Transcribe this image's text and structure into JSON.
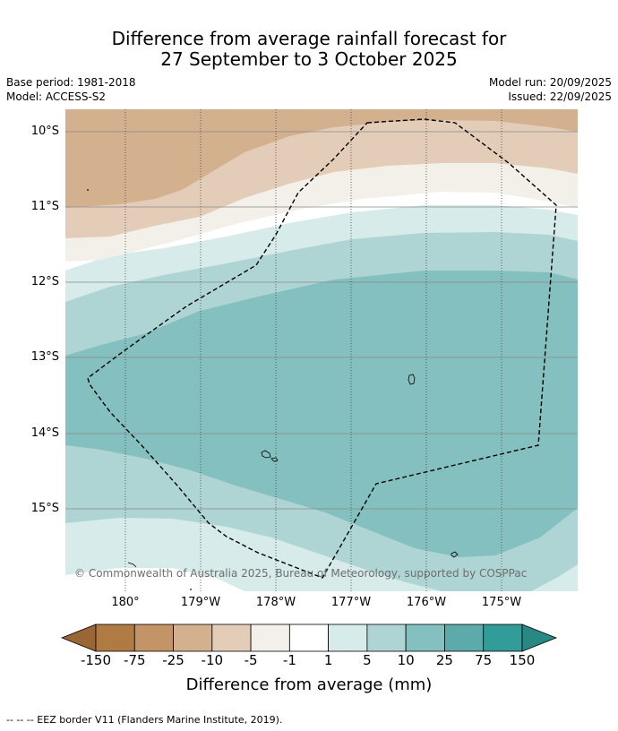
{
  "title": {
    "line1": "Difference from average rainfall forecast for",
    "line2": "27 September to 3 October 2025"
  },
  "meta": {
    "base_period": "Base period: 1981-2018",
    "model": "Model: ACCESS-S2",
    "model_run": "Model run: 20/09/2025",
    "issued": "Issued: 22/09/2025"
  },
  "map": {
    "latitude_labels": [
      "10°S",
      "11°S",
      "12°S",
      "13°S",
      "14°S",
      "15°S"
    ],
    "longitude_labels": [
      "180°",
      "179°W",
      "178°W",
      "177°W",
      "176°W",
      "175°W"
    ],
    "copyright": "© Commonwealth of Australia 2025, Bureau of Meteorology, supported by COSPPac"
  },
  "colorbar": {
    "title": "Difference from average (mm)",
    "labels": [
      "-150",
      "-75",
      "-25",
      "-10",
      "-5",
      "-1",
      "1",
      "5",
      "10",
      "25",
      "75",
      "150"
    ],
    "colors": [
      "#b07a43",
      "#c29466",
      "#d3b08e",
      "#e3cdb8",
      "#f3efe9",
      "#ffffff",
      "#d6ebea",
      "#aed5d4",
      "#84c0bf",
      "#5cabaa",
      "#319c98"
    ],
    "low_extend_color": "#9b6636",
    "high_extend_color": "#2a8884"
  },
  "footnote": "-- -- -- EEZ border V11 (Flanders Marine Institute, 2019)."
}
